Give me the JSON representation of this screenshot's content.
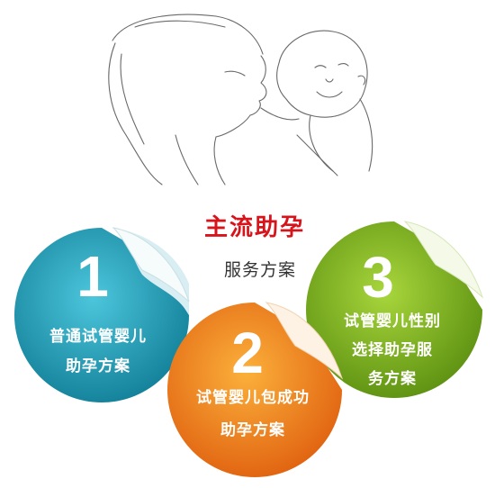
{
  "title": "主流助孕",
  "subtitle": "服务方案",
  "sketch_icon": "mother-kissing-baby-sketch",
  "plans": [
    {
      "number": "1",
      "lines": [
        "普通试管婴儿",
        "助孕方案"
      ],
      "color": "#1fa4bd"
    },
    {
      "number": "2",
      "lines": [
        "试管婴儿包成功",
        "助孕方案"
      ],
      "color": "#f08a1a"
    },
    {
      "number": "3",
      "lines": [
        "试管婴儿性别",
        "选择助孕服",
        "务方案"
      ],
      "color": "#7db11e"
    }
  ]
}
